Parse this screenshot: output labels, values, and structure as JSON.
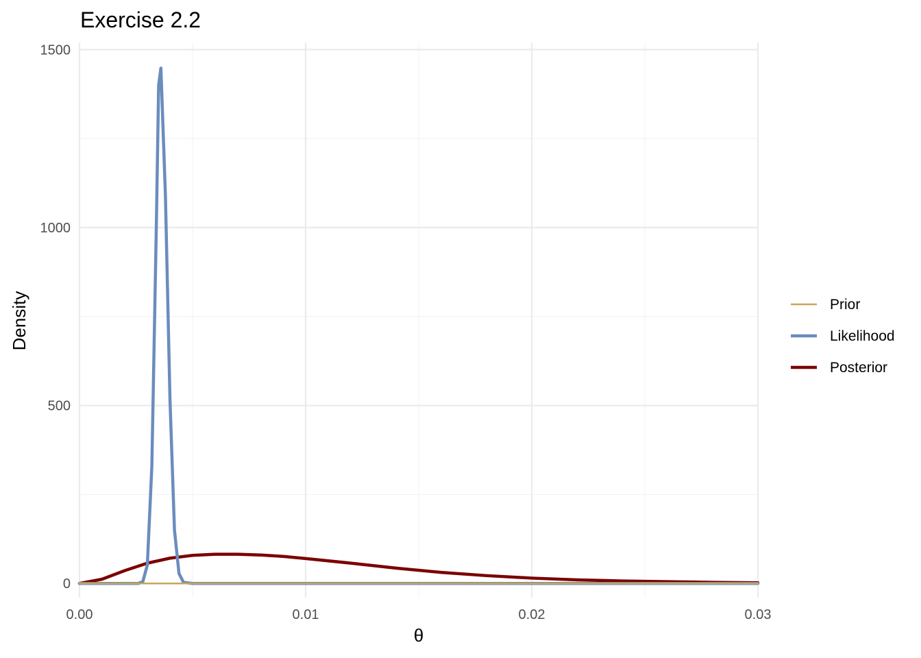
{
  "chart_data": {
    "type": "line",
    "title": "Exercise 2.2",
    "xlabel": "θ",
    "ylabel": "Density",
    "xlim": [
      0,
      0.03
    ],
    "ylim": [
      -40,
      1520
    ],
    "x_ticks": [
      0,
      0.01,
      0.02,
      0.03
    ],
    "x_tick_labels": [
      "0.00",
      "0.01",
      "0.02",
      "0.03"
    ],
    "y_ticks": [
      0,
      500,
      1000,
      1500
    ],
    "y_tick_labels": [
      "0",
      "500",
      "1000",
      "1500"
    ],
    "grid": true,
    "legend_position": "right",
    "series": [
      {
        "name": "Prior",
        "color": "#c8a45a",
        "x": [
          0,
          0.005,
          0.01,
          0.015,
          0.02,
          0.025,
          0.03
        ],
        "y": [
          0,
          0,
          0,
          0,
          0,
          0,
          0
        ]
      },
      {
        "name": "Likelihood",
        "color": "#6b8cbe",
        "x": [
          0,
          0.0026,
          0.0028,
          0.003,
          0.0032,
          0.0034,
          0.0035,
          0.0036,
          0.0038,
          0.004,
          0.0042,
          0.0044,
          0.0046,
          0.005,
          0.01,
          0.02,
          0.03
        ],
        "y": [
          0,
          0,
          5,
          52,
          330,
          1010,
          1400,
          1448,
          1090,
          520,
          150,
          28,
          3,
          0,
          0,
          0,
          0
        ]
      },
      {
        "name": "Posterior",
        "color": "#7a0000",
        "x": [
          0,
          0.001,
          0.002,
          0.003,
          0.004,
          0.005,
          0.006,
          0.007,
          0.008,
          0.009,
          0.01,
          0.012,
          0.014,
          0.016,
          0.018,
          0.02,
          0.022,
          0.024,
          0.026,
          0.028,
          0.03
        ],
        "y": [
          0,
          12,
          36,
          57,
          71,
          79,
          82,
          82,
          80,
          76,
          70,
          57,
          43,
          31,
          22,
          15,
          10,
          7,
          5,
          3,
          2
        ]
      }
    ]
  }
}
